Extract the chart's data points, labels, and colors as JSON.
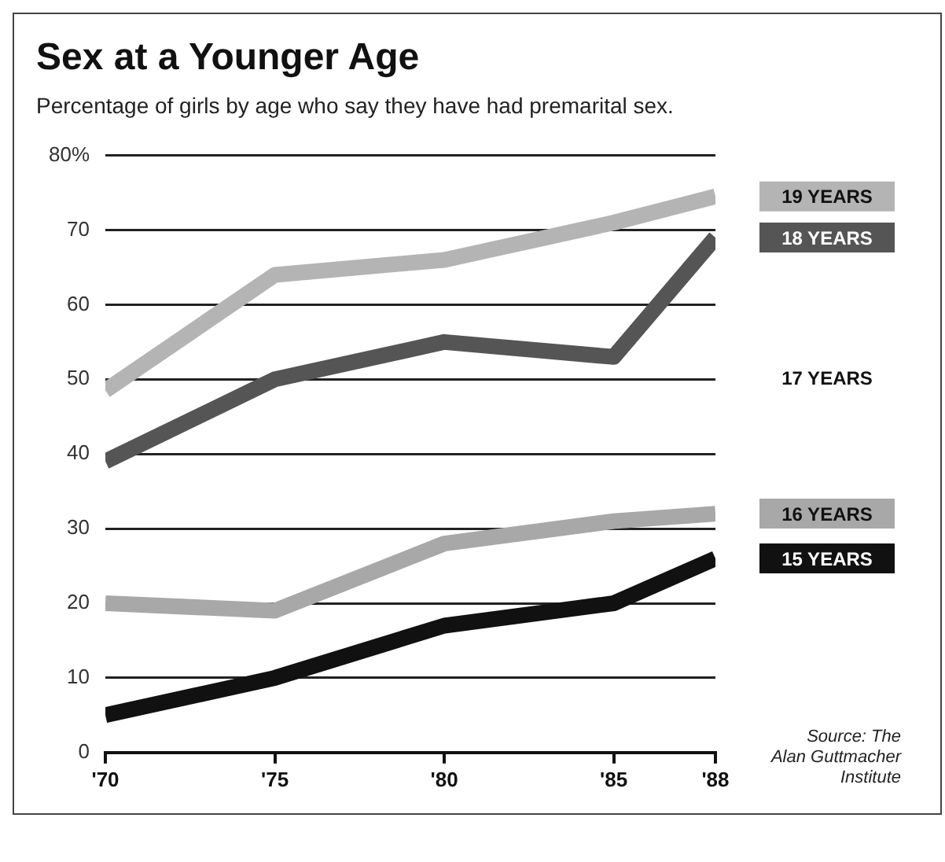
{
  "chart_data": {
    "type": "line",
    "title": "Sex at a Younger Age",
    "subtitle": "Percentage of girls by age who say they have had premarital sex.",
    "x": [
      1970,
      1975,
      1980,
      1985,
      1988
    ],
    "series": [
      {
        "name": "19 YEARS",
        "color": "#b4b4b4",
        "values": [
          48.5,
          64,
          66,
          71,
          74.5
        ]
      },
      {
        "name": "18 YEARS",
        "color": "#555555",
        "values": [
          39,
          50,
          55,
          53,
          69
        ]
      },
      {
        "name": "16 YEARS",
        "color": "#a8a8a8",
        "values": [
          20,
          19,
          28,
          31,
          32
        ]
      },
      {
        "name": "15 YEARS",
        "color": "#111111",
        "values": [
          5,
          10,
          17,
          20,
          26
        ]
      }
    ],
    "xlim": [
      1970,
      1988
    ],
    "xticks": [
      {
        "value": 1970,
        "label": "'70"
      },
      {
        "value": 1975,
        "label": "'75"
      },
      {
        "value": 1980,
        "label": "'80"
      },
      {
        "value": 1985,
        "label": "'85"
      },
      {
        "value": 1988,
        "label": "'88"
      }
    ],
    "ylim": [
      0,
      80
    ],
    "yticks": [
      0,
      10,
      20,
      30,
      40,
      50,
      60,
      70,
      {
        "value": 80,
        "label": "80%"
      }
    ],
    "grid": "y",
    "legend": "right",
    "marker": "none",
    "line_style": "solid",
    "annotations": [
      "17 YEARS",
      "Source: The Alan Guttmacher Institute"
    ]
  }
}
